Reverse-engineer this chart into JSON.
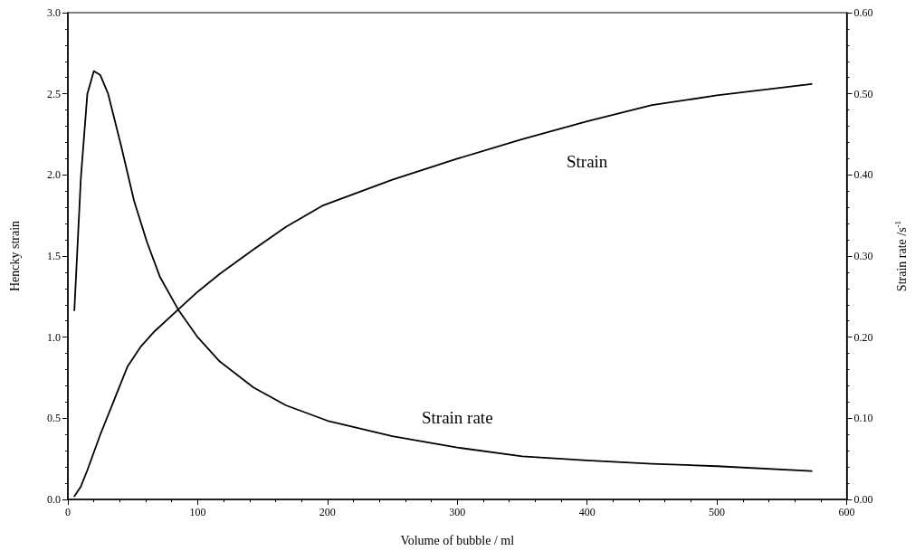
{
  "chart_data": {
    "type": "line",
    "xlabel": "Volume of bubble / ml",
    "ylabel": "Hencky strain",
    "y2label": "Strain rate /s$^{-1}$",
    "xlim": [
      0,
      600
    ],
    "xticks": [
      0,
      100,
      200,
      300,
      400,
      500,
      600
    ],
    "ylim": [
      0,
      3
    ],
    "yticks": [
      {
        "value": 0,
        "label": "0.0"
      },
      0.5,
      {
        "value": 1,
        "label": "1.0"
      },
      1.5,
      {
        "value": 2,
        "label": "2.0"
      },
      2.5,
      {
        "value": 3,
        "label": "3.0"
      }
    ],
    "y2lim": [
      0,
      0.6
    ],
    "y2ticks": [
      {
        "value": 0,
        "label": "0.00"
      },
      {
        "value": 0.1,
        "label": "0.10"
      },
      {
        "value": 0.2,
        "label": "0.20"
      },
      {
        "value": 0.3,
        "label": "0.30"
      },
      {
        "value": 0.4,
        "label": "0.40"
      },
      {
        "value": 0.5,
        "label": "0.50"
      },
      {
        "value": 0.6,
        "label": "0.60"
      }
    ],
    "grid": false,
    "marker": "none",
    "line_style": "solid",
    "series": [
      {
        "name": "Strain",
        "color": "#000000",
        "x": [
          5,
          10,
          15,
          20,
          25,
          36,
          46,
          56,
          66,
          85,
          100,
          117,
          143,
          168,
          196,
          250,
          300,
          350,
          400,
          450,
          500,
          573
        ],
        "values": [
          0.02,
          0.08,
          0.18,
          0.29,
          0.4,
          0.62,
          0.82,
          0.94,
          1.03,
          1.17,
          1.28,
          1.39,
          1.54,
          1.68,
          1.81,
          1.97,
          2.1,
          2.22,
          2.33,
          2.43,
          2.49,
          2.56
        ]
      },
      {
        "name": "Strain rate",
        "color": "#000000",
        "axis": "y2",
        "x": [
          5,
          10,
          15,
          20,
          25,
          31,
          41,
          51,
          61,
          71,
          85,
          100,
          117,
          143,
          168,
          200,
          250,
          300,
          350,
          400,
          450,
          500,
          573
        ],
        "values": [
          0.233,
          0.396,
          0.5,
          0.528,
          0.523,
          0.5,
          0.436,
          0.368,
          0.317,
          0.274,
          0.234,
          0.2,
          0.17,
          0.138,
          0.116,
          0.097,
          0.078,
          0.064,
          0.053,
          0.048,
          0.044,
          0.041,
          0.035
        ]
      }
    ]
  }
}
